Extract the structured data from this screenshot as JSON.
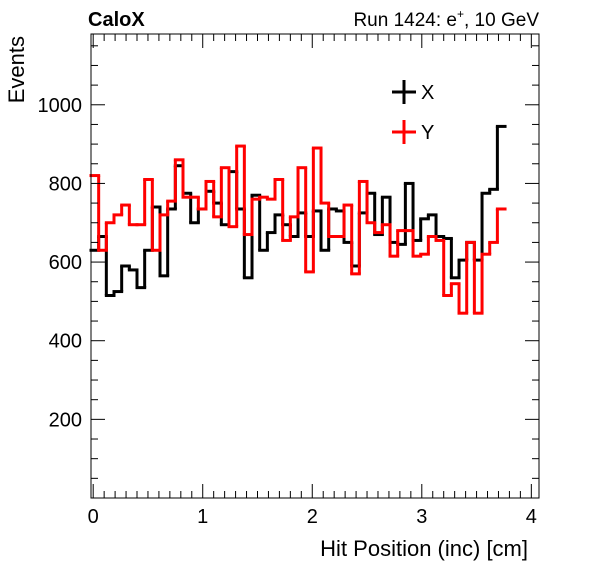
{
  "header": {
    "experiment": "CaloX",
    "run_prefix": "Run 1424: e",
    "run_superscript": "+",
    "run_suffix": ", 10 GeV"
  },
  "chart_data": {
    "type": "histogram",
    "xlabel": "Hit Position (inc) [cm]",
    "ylabel": "Events",
    "xlim": [
      -0.02,
      4.07
    ],
    "ylim": [
      0,
      1180
    ],
    "x_ticks": [
      0,
      1,
      2,
      3,
      4
    ],
    "y_ticks": [
      200,
      400,
      600,
      800,
      1000
    ],
    "grid": false,
    "legend_placement": "top-center-right",
    "bin_edges_start": -0.02,
    "bin_width": 0.07,
    "series": [
      {
        "name": "X",
        "color": "#000000",
        "values": [
          630,
          665,
          515,
          525,
          590,
          580,
          535,
          630,
          740,
          565,
          735,
          845,
          775,
          700,
          735,
          780,
          750,
          695,
          830,
          735,
          560,
          770,
          630,
          675,
          720,
          695,
          665,
          725,
          665,
          730,
          630,
          735,
          730,
          650,
          590,
          725,
          775,
          670,
          765,
          650,
          645,
          800,
          655,
          710,
          720,
          665,
          660,
          560,
          605,
          650,
          605,
          775,
          785,
          945
        ]
      },
      {
        "name": "Y",
        "color": "#ff0000",
        "values": [
          820,
          630,
          700,
          720,
          745,
          695,
          695,
          810,
          630,
          720,
          755,
          860,
          765,
          765,
          735,
          805,
          715,
          840,
          690,
          895,
          670,
          760,
          765,
          760,
          810,
          655,
          715,
          840,
          575,
          890,
          750,
          665,
          665,
          745,
          570,
          805,
          700,
          675,
          695,
          615,
          680,
          680,
          615,
          620,
          665,
          655,
          515,
          545,
          470,
          650,
          470,
          620,
          650,
          735
        ]
      }
    ]
  }
}
